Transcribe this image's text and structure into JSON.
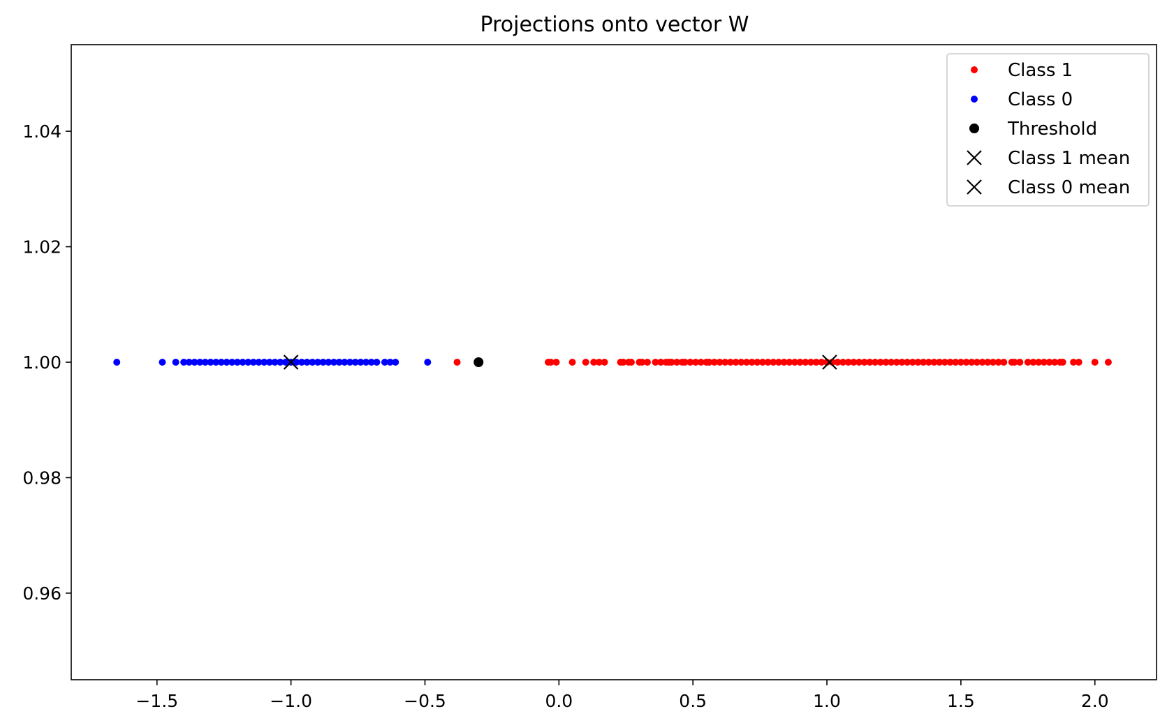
{
  "chart_data": {
    "type": "scatter",
    "title": "Projections onto vector W",
    "xlabel": "",
    "ylabel": "",
    "xlim": [
      -1.82,
      2.23
    ],
    "ylim": [
      0.945,
      1.055
    ],
    "x_ticks": [
      -1.5,
      -1.0,
      -0.5,
      0.0,
      0.5,
      1.0,
      1.5,
      2.0
    ],
    "x_tick_labels": [
      "−1.5",
      "−1.0",
      "−0.5",
      "0.0",
      "0.5",
      "1.0",
      "1.5",
      "2.0"
    ],
    "y_ticks": [
      0.96,
      0.98,
      1.0,
      1.02,
      1.04
    ],
    "y_tick_labels": [
      "0.96",
      "0.98",
      "1.00",
      "1.02",
      "1.04"
    ],
    "grid": false,
    "legend_position": "top-right",
    "series": [
      {
        "name": "Class 1",
        "color": "#ff0000",
        "marker": "dot",
        "x": [
          -0.38,
          -0.04,
          -0.03,
          -0.01,
          0.05,
          0.1,
          0.13,
          0.15,
          0.17,
          0.23,
          0.24,
          0.26,
          0.27,
          0.3,
          0.31,
          0.33,
          0.36,
          0.38,
          0.4,
          0.41,
          0.42,
          0.44,
          0.46,
          0.47,
          0.49,
          0.51,
          0.53,
          0.55,
          0.56,
          0.58,
          0.6,
          0.62,
          0.64,
          0.66,
          0.68,
          0.7,
          0.72,
          0.74,
          0.76,
          0.78,
          0.8,
          0.82,
          0.84,
          0.86,
          0.88,
          0.9,
          0.92,
          0.94,
          0.96,
          0.98,
          1.0,
          1.02,
          1.04,
          1.06,
          1.08,
          1.1,
          1.12,
          1.14,
          1.16,
          1.18,
          1.2,
          1.22,
          1.24,
          1.26,
          1.28,
          1.3,
          1.32,
          1.34,
          1.36,
          1.38,
          1.4,
          1.42,
          1.44,
          1.46,
          1.48,
          1.5,
          1.52,
          1.54,
          1.56,
          1.58,
          1.6,
          1.62,
          1.64,
          1.66,
          1.69,
          1.7,
          1.72,
          1.75,
          1.77,
          1.79,
          1.81,
          1.83,
          1.85,
          1.87,
          1.88,
          1.92,
          1.94,
          2.0,
          2.05
        ],
        "y": 1.0
      },
      {
        "name": "Class 0",
        "color": "#0000ff",
        "marker": "dot",
        "x": [
          -1.65,
          -1.48,
          -1.43,
          -1.4,
          -1.38,
          -1.36,
          -1.34,
          -1.32,
          -1.3,
          -1.28,
          -1.26,
          -1.24,
          -1.22,
          -1.2,
          -1.18,
          -1.16,
          -1.14,
          -1.12,
          -1.1,
          -1.08,
          -1.06,
          -1.04,
          -1.02,
          -1.0,
          -0.98,
          -0.96,
          -0.94,
          -0.92,
          -0.9,
          -0.88,
          -0.86,
          -0.84,
          -0.82,
          -0.8,
          -0.78,
          -0.76,
          -0.74,
          -0.72,
          -0.7,
          -0.68,
          -0.65,
          -0.63,
          -0.61,
          -0.49
        ],
        "y": 1.0
      },
      {
        "name": "Threshold",
        "color": "#000000",
        "marker": "dot-large",
        "x": [
          -0.3
        ],
        "y": 1.0
      },
      {
        "name": "Class 1 mean",
        "color": "#000000",
        "marker": "x",
        "x": [
          1.01
        ],
        "y": 1.0
      },
      {
        "name": "Class 0 mean",
        "color": "#000000",
        "marker": "x",
        "x": [
          -1.0
        ],
        "y": 1.0
      }
    ]
  }
}
